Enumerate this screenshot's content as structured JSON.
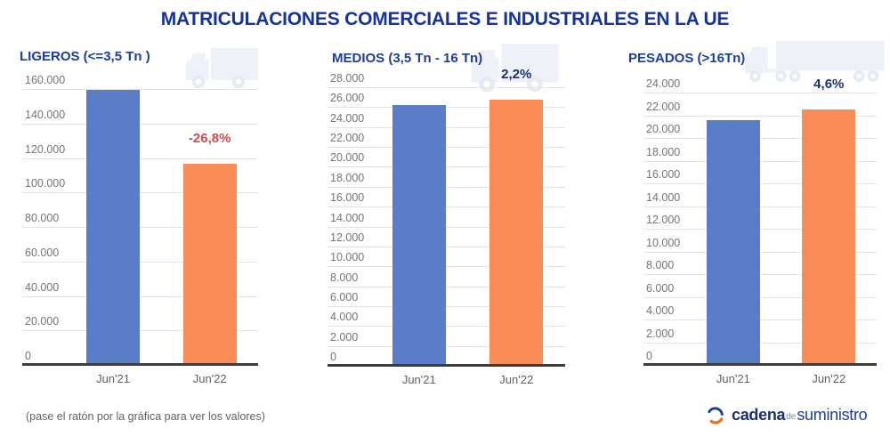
{
  "page": {
    "title": "MATRICULACIONES COMERCIALES E INDUSTRIALES EN LA UE",
    "footer_note": "(pase el ratón por la gráfica para ver los valores)",
    "logo": {
      "word1": "cadena",
      "word2": "de",
      "word3": "suministro"
    }
  },
  "colors": {
    "title": "#15339b",
    "chart_header": "#1d3d9e",
    "bar_blue": "#5b7cc7",
    "bar_orange": "#f98c57",
    "negative_change": "#cf4a4e",
    "positive_change": "#1c2f77",
    "gridline": "#e4e4e4",
    "axis": "#3c3c3c",
    "tick_label": "#757575",
    "x_label": "#616161",
    "truck_icon": "#eef1f8",
    "truck_icon_dark": "#e6eaf5",
    "note": "#5f6368",
    "logo_blue": "#1c2f6f",
    "logo_blue2": "#1c3f96",
    "logo_orange": "#e87722"
  },
  "chart_data": [
    {
      "type": "bar",
      "title": "LIGEROS (<=3,5 Tn )",
      "categories": [
        "Jun'21",
        "Jun'22"
      ],
      "values": [
        159700,
        116900
      ],
      "ylim": [
        0,
        160000
      ],
      "ytick_step": 20000,
      "change_label": "-26,8%",
      "change": "negative",
      "grid": true,
      "legend": "none"
    },
    {
      "type": "bar",
      "title": "MEDIOS (3,5 Tn - 16 Tn)",
      "categories": [
        "Jun'21",
        "Jun'22"
      ],
      "values": [
        26200,
        26780
      ],
      "ylim": [
        0,
        28000
      ],
      "ytick_step": 2000,
      "change_label": "2,2%",
      "change": "positive",
      "grid": true,
      "legend": "none"
    },
    {
      "type": "bar",
      "title": "PESADOS (>16Tn)",
      "categories": [
        "Jun'21",
        "Jun'22"
      ],
      "values": [
        21550,
        22550
      ],
      "ylim": [
        0,
        24000
      ],
      "ytick_step": 2000,
      "change_label": "4,6%",
      "change": "positive",
      "grid": true,
      "legend": "none"
    }
  ]
}
